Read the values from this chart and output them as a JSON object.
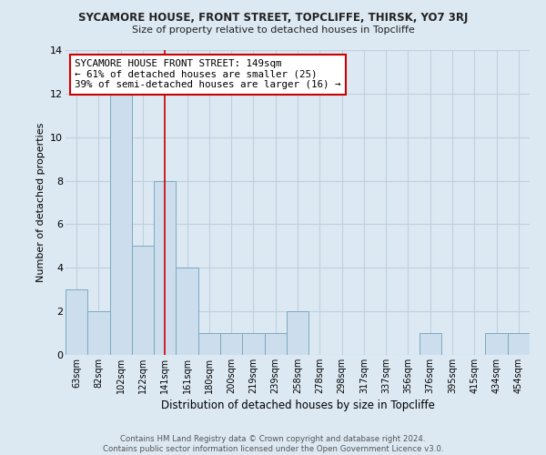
{
  "title": "SYCAMORE HOUSE, FRONT STREET, TOPCLIFFE, THIRSK, YO7 3RJ",
  "subtitle": "Size of property relative to detached houses in Topcliffe",
  "xlabel": "Distribution of detached houses by size in Topcliffe",
  "ylabel": "Number of detached properties",
  "bar_labels": [
    "63sqm",
    "82sqm",
    "102sqm",
    "122sqm",
    "141sqm",
    "161sqm",
    "180sqm",
    "200sqm",
    "219sqm",
    "239sqm",
    "258sqm",
    "278sqm",
    "298sqm",
    "317sqm",
    "337sqm",
    "356sqm",
    "376sqm",
    "395sqm",
    "415sqm",
    "434sqm",
    "454sqm"
  ],
  "bar_values": [
    3,
    2,
    12,
    5,
    8,
    4,
    1,
    1,
    1,
    1,
    2,
    0,
    0,
    0,
    0,
    0,
    1,
    0,
    0,
    1,
    1
  ],
  "bar_color": "#ccdded",
  "bar_edgecolor": "#7aaabf",
  "vline_x_index": 4.0,
  "vline_color": "#cc0000",
  "annotation_text": "SYCAMORE HOUSE FRONT STREET: 149sqm\n← 61% of detached houses are smaller (25)\n39% of semi-detached houses are larger (16) →",
  "annotation_box_color": "#ffffff",
  "annotation_border_color": "#cc0000",
  "ylim": [
    0,
    14
  ],
  "yticks": [
    0,
    2,
    4,
    6,
    8,
    10,
    12,
    14
  ],
  "footer_line1": "Contains HM Land Registry data © Crown copyright and database right 2024.",
  "footer_line2": "Contains public sector information licensed under the Open Government Licence v3.0.",
  "background_color": "#dce9f3",
  "grid_color": "#c0d0e0",
  "title_fontsize": 8.5,
  "subtitle_fontsize": 8.0
}
